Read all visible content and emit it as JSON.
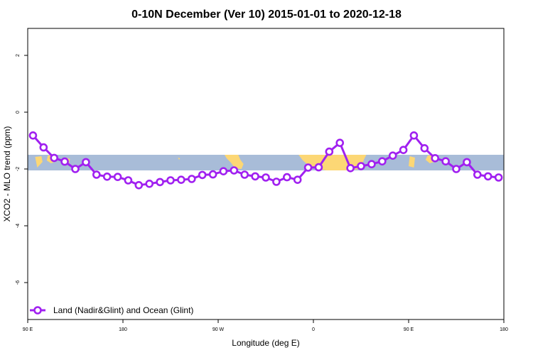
{
  "chart_data": {
    "type": "line",
    "title": "0-10N December (Ver 10)   2015-01-01 to 2020-12-18",
    "xlabel": "Longitude (deg E)",
    "ylabel": "XCO2 - MLO trend (ppm)",
    "xlim": [
      90,
      540
    ],
    "ylim": [
      -7.3,
      2.95
    ],
    "x_ticks": [
      {
        "value": 90,
        "label": "90 E"
      },
      {
        "value": 180,
        "label": "180"
      },
      {
        "value": 270,
        "label": "90 W"
      },
      {
        "value": 360,
        "label": "0"
      },
      {
        "value": 450,
        "label": "90 E"
      },
      {
        "value": 540,
        "label": "180"
      }
    ],
    "y_ticks": [
      {
        "value": 2,
        "label": "2"
      },
      {
        "value": 0,
        "label": "0"
      },
      {
        "value": -2,
        "label": "-2"
      },
      {
        "value": -4,
        "label": "-4"
      },
      {
        "value": -6,
        "label": "-6"
      }
    ],
    "grid": false,
    "legend_position": "bottom-left",
    "series": [
      {
        "name": "Land (Nadir&Glint) and Ocean (Glint)",
        "color": "#a020f0",
        "x": [
          95,
          105,
          115,
          125,
          135,
          145,
          155,
          165,
          175,
          185,
          195,
          205,
          215,
          225,
          235,
          245,
          255,
          265,
          275,
          285,
          295,
          305,
          315,
          325,
          335,
          345,
          355,
          365,
          375,
          385,
          395,
          405,
          415,
          425,
          435,
          445,
          455,
          465,
          475,
          485,
          495,
          505,
          515,
          525,
          535
        ],
        "y": [
          -0.82,
          -1.24,
          -1.61,
          -1.74,
          -2.0,
          -1.76,
          -2.2,
          -2.27,
          -2.28,
          -2.4,
          -2.57,
          -2.52,
          -2.46,
          -2.4,
          -2.38,
          -2.35,
          -2.21,
          -2.19,
          -2.08,
          -2.05,
          -2.2,
          -2.26,
          -2.3,
          -2.45,
          -2.29,
          -2.38,
          -1.95,
          -1.94,
          -1.39,
          -1.08,
          -1.97,
          -1.9,
          -1.83,
          -1.73,
          -1.53,
          -1.33,
          -0.82,
          -1.27,
          -1.62,
          -1.73,
          -2.0,
          -1.76,
          -2.2,
          -2.26,
          -2.3
        ]
      }
    ],
    "background_map": {
      "lat_band": [
        -1.5,
        -2.05
      ],
      "ocean_color": "#a8bcd8",
      "land_color": "#fcd775"
    }
  }
}
